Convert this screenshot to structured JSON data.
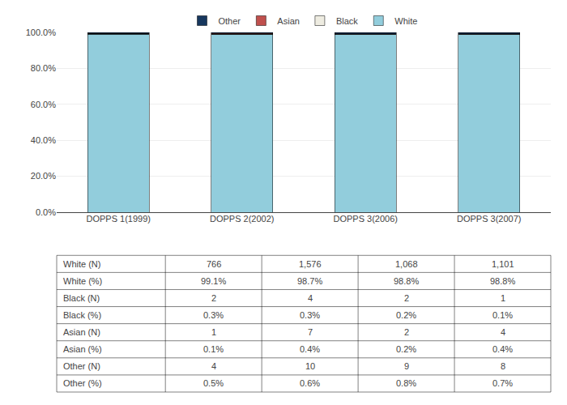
{
  "chart_data": {
    "type": "bar",
    "stacked": true,
    "categories": [
      "DOPPS 1(1999)",
      "DOPPS 2(2002)",
      "DOPPS 3(2006)",
      "DOPPS 3(2007)"
    ],
    "series": [
      {
        "name": "White",
        "color": "#92CDDC",
        "values": [
          99.1,
          98.7,
          98.8,
          98.8
        ]
      },
      {
        "name": "Black",
        "color": "#EEECE1",
        "values": [
          0.3,
          0.3,
          0.2,
          0.1
        ]
      },
      {
        "name": "Asian",
        "color": "#C0504D",
        "values": [
          0.1,
          0.4,
          0.2,
          0.4
        ]
      },
      {
        "name": "Other",
        "color": "#17375E",
        "values": [
          0.5,
          0.6,
          0.8,
          0.7
        ]
      }
    ],
    "ylim": [
      0,
      100
    ],
    "yticks": [
      {
        "value": 0,
        "label": "0.0%"
      },
      {
        "value": 20,
        "label": "20.0%"
      },
      {
        "value": 40,
        "label": "40.0%"
      },
      {
        "value": 60,
        "label": "60.0%"
      },
      {
        "value": 80,
        "label": "80.0%"
      },
      {
        "value": 100,
        "label": "100.0%"
      }
    ],
    "grid": true,
    "legend": "upper center",
    "table_rows": [
      [
        "White (N)",
        "766",
        "1,576",
        "1,068",
        "1,101"
      ],
      [
        "White (%)",
        "99.1%",
        "98.7%",
        "98.8%",
        "98.8%"
      ],
      [
        "Black (N)",
        "2",
        "4",
        "2",
        "1"
      ],
      [
        "Black (%)",
        "0.3%",
        "0.3%",
        "0.2%",
        "0.1%"
      ],
      [
        "Asian (N)",
        "1",
        "7",
        "2",
        "4"
      ],
      [
        "Asian (%)",
        "0.1%",
        "0.4%",
        "0.2%",
        "0.4%"
      ],
      [
        "Other (N)",
        "4",
        "10",
        "9",
        "8"
      ],
      [
        "Other (%)",
        "0.5%",
        "0.6%",
        "0.8%",
        "0.7%"
      ]
    ]
  }
}
